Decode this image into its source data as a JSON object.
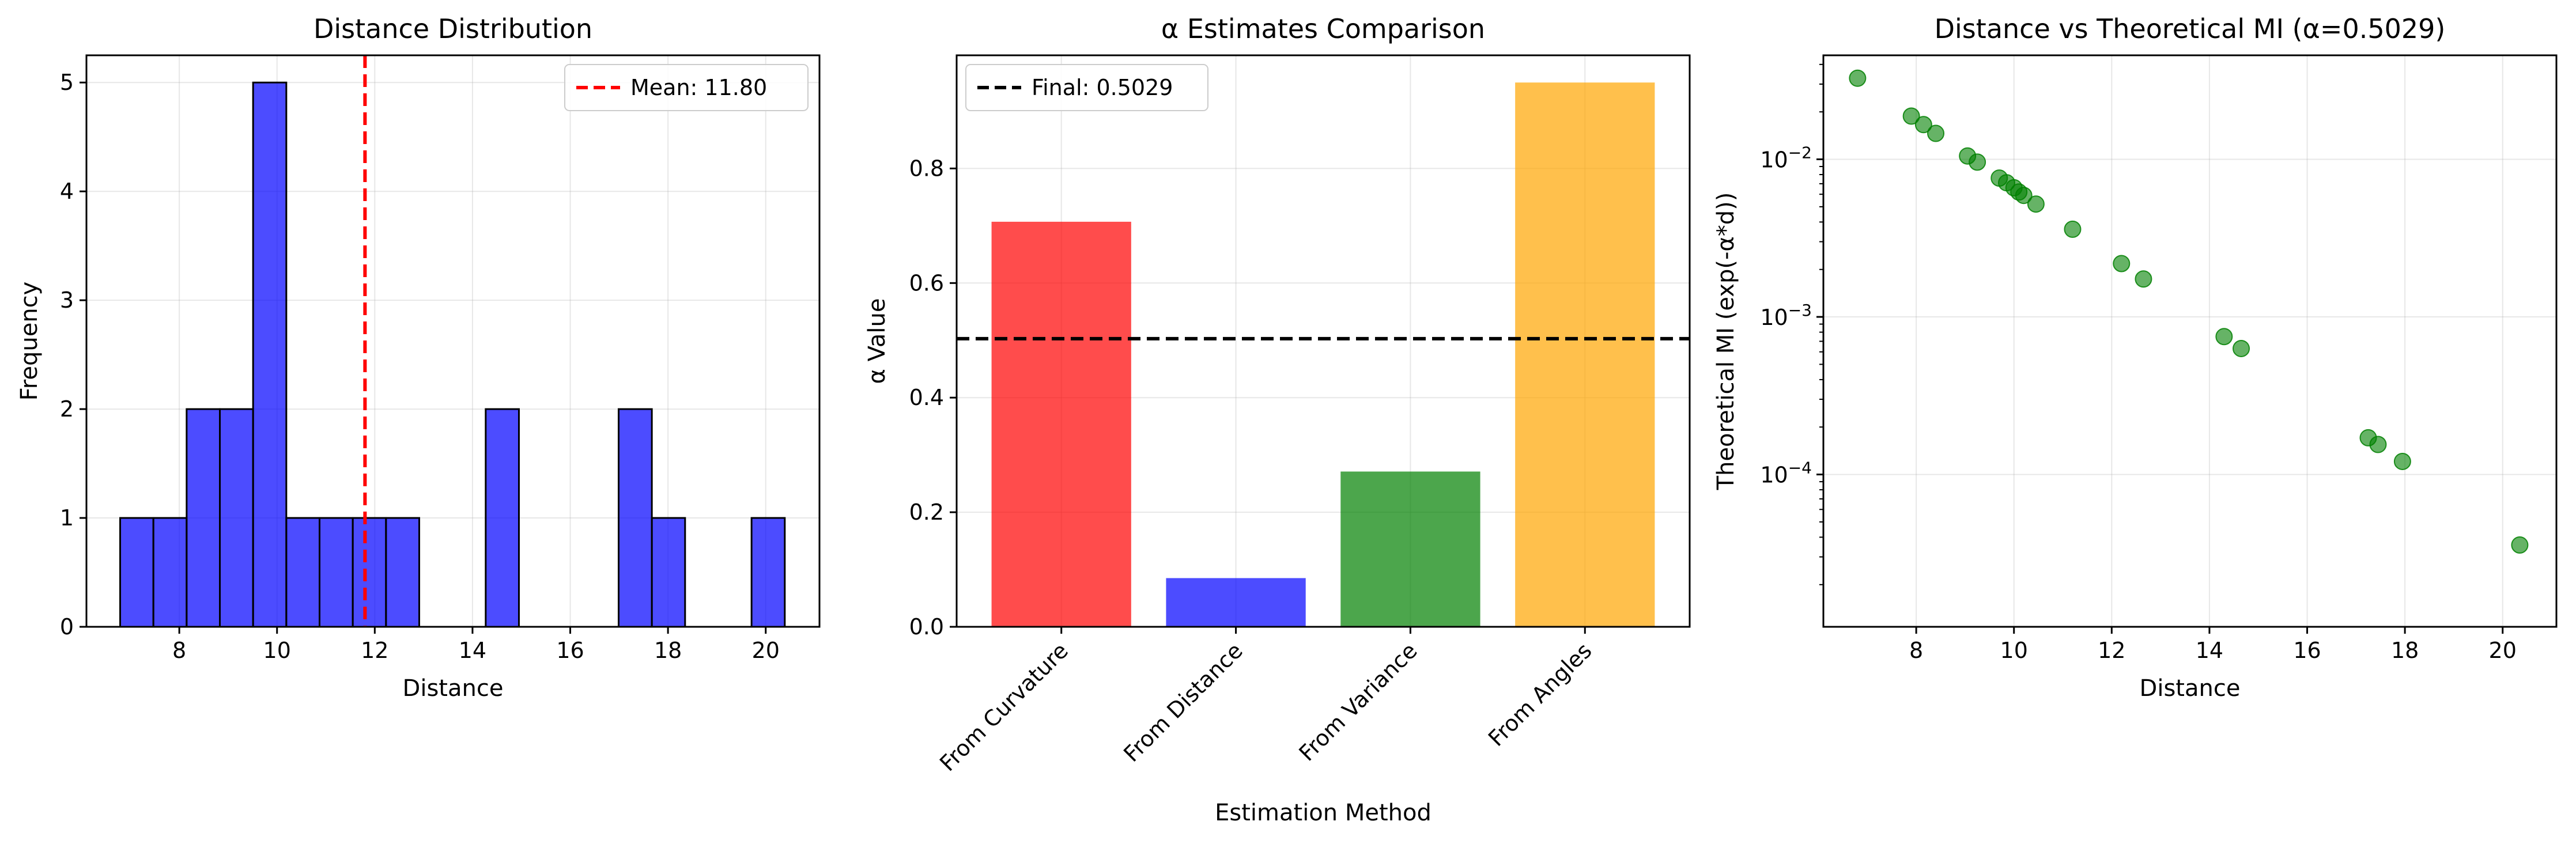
{
  "chart_data": [
    {
      "type": "bar",
      "title": "Distance Distribution",
      "xlabel": "Distance",
      "ylabel": "Frequency",
      "xlim": [
        6.1,
        21.1
      ],
      "ylim": [
        0,
        5.25
      ],
      "xticks": [
        "8",
        "10",
        "12",
        "14",
        "16",
        "18",
        "20"
      ],
      "yticks": [
        "0",
        "1",
        "2",
        "3",
        "4",
        "5"
      ],
      "grid": true,
      "legend_position": "top-right",
      "bin_edges": [
        6.79,
        7.47,
        8.15,
        8.83,
        9.51,
        10.19,
        10.87,
        11.55,
        12.23,
        12.91,
        13.59,
        14.27,
        14.95,
        15.63,
        16.31,
        16.99,
        17.67,
        18.35,
        19.03,
        19.71,
        20.39
      ],
      "values": [
        1,
        1,
        2,
        2,
        5,
        1,
        1,
        1,
        1,
        0,
        0,
        2,
        0,
        0,
        0,
        2,
        1,
        0,
        0,
        1
      ],
      "bar_color": "#0000ff",
      "mean_line": {
        "label": "Mean: 11.80",
        "value": 11.8,
        "color": "#ff0000"
      }
    },
    {
      "type": "bar",
      "title": "α Estimates Comparison",
      "xlabel": "Estimation Method",
      "ylabel": "α Value",
      "ylim": [
        0,
        0.9975
      ],
      "yticks": [
        "0.0",
        "0.2",
        "0.4",
        "0.6",
        "0.8"
      ],
      "grid": true,
      "legend_position": "top-left",
      "categories": [
        "From Curvature",
        "From Distance",
        "From Variance",
        "From Angles"
      ],
      "values": [
        0.707,
        0.085,
        0.271,
        0.95
      ],
      "colors": [
        "#ff0000",
        "#0000ff",
        "#008000",
        "#ffa500"
      ],
      "reference_line": {
        "label": "Final: 0.5029",
        "value": 0.5029,
        "color": "#000000"
      }
    },
    {
      "type": "scatter",
      "title": "Distance vs Theoretical MI (α=0.5029)",
      "xlabel": "Distance",
      "ylabel": "Theoretical MI (exp(-α*d))",
      "xlim": [
        6.1,
        21.1
      ],
      "ylim": [
        1.08e-05,
        0.0457
      ],
      "yscale": "log",
      "xticks": [
        "8",
        "10",
        "12",
        "14",
        "16",
        "18",
        "20"
      ],
      "yticks": [
        "10^-4",
        "10^-3",
        "10^-2"
      ],
      "grid": true,
      "point_color": "#008000",
      "x": [
        6.8,
        7.9,
        8.15,
        8.4,
        9.05,
        9.25,
        9.7,
        9.85,
        10.0,
        10.1,
        10.2,
        10.45,
        11.2,
        12.2,
        12.65,
        14.3,
        14.65,
        17.25,
        17.45,
        17.95,
        20.35
      ],
      "y": [
        0.0327,
        0.0188,
        0.0166,
        0.0146,
        0.0105,
        0.0096,
        0.0076,
        0.0071,
        0.0066,
        0.0062,
        0.0059,
        0.0052,
        0.0036,
        0.00218,
        0.00174,
        0.00075,
        0.00063,
        0.000171,
        0.000155,
        0.000121,
        3.57e-05
      ]
    }
  ]
}
